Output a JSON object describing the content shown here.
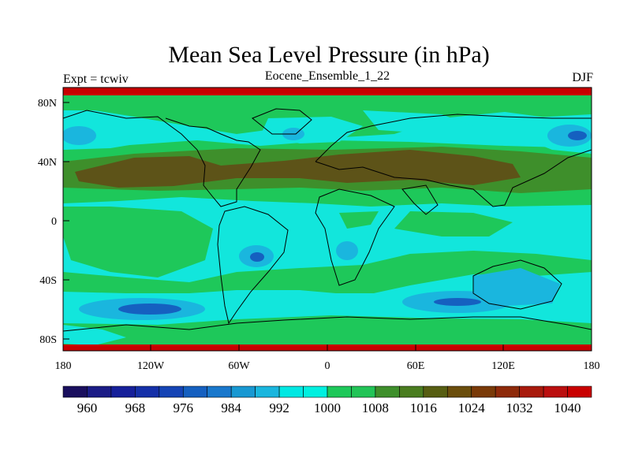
{
  "title": "Mean Sea Level Pressure (in hPa)",
  "left_label": "Expt = tcwiv",
  "center_label": "Eocene_Ensemble_1_22",
  "right_label": "DJF",
  "lat_ticks": [
    "80N",
    "40N",
    "0",
    "40S",
    "80S"
  ],
  "lon_ticks": [
    "180",
    "120W",
    "60W",
    "0",
    "60E",
    "120E",
    "180"
  ],
  "colorbar": {
    "colors": [
      "#1a0f5e",
      "#1b1c86",
      "#16209a",
      "#1530a8",
      "#1544b5",
      "#1560c0",
      "#1978cc",
      "#1898d2",
      "#1ab6de",
      "#00e8e3",
      "#00f0e0",
      "#1ec85a",
      "#22c457",
      "#3e8f2b",
      "#4a7d20",
      "#575e12",
      "#6b4e0c",
      "#7a3a08",
      "#8e2a0a",
      "#a81a0c",
      "#bb0f0f",
      "#c90000"
    ],
    "labels": [
      "960",
      "968",
      "976",
      "984",
      "992",
      "1000",
      "1008",
      "1016",
      "1024",
      "1032",
      "1040"
    ]
  },
  "colors": {
    "low": "#1a8fd0",
    "mid_cyan": "#12e6dc",
    "green": "#1ec85a",
    "dark_green": "#3a7a2a",
    "brown": "#5d5318",
    "red": "#c70000"
  }
}
